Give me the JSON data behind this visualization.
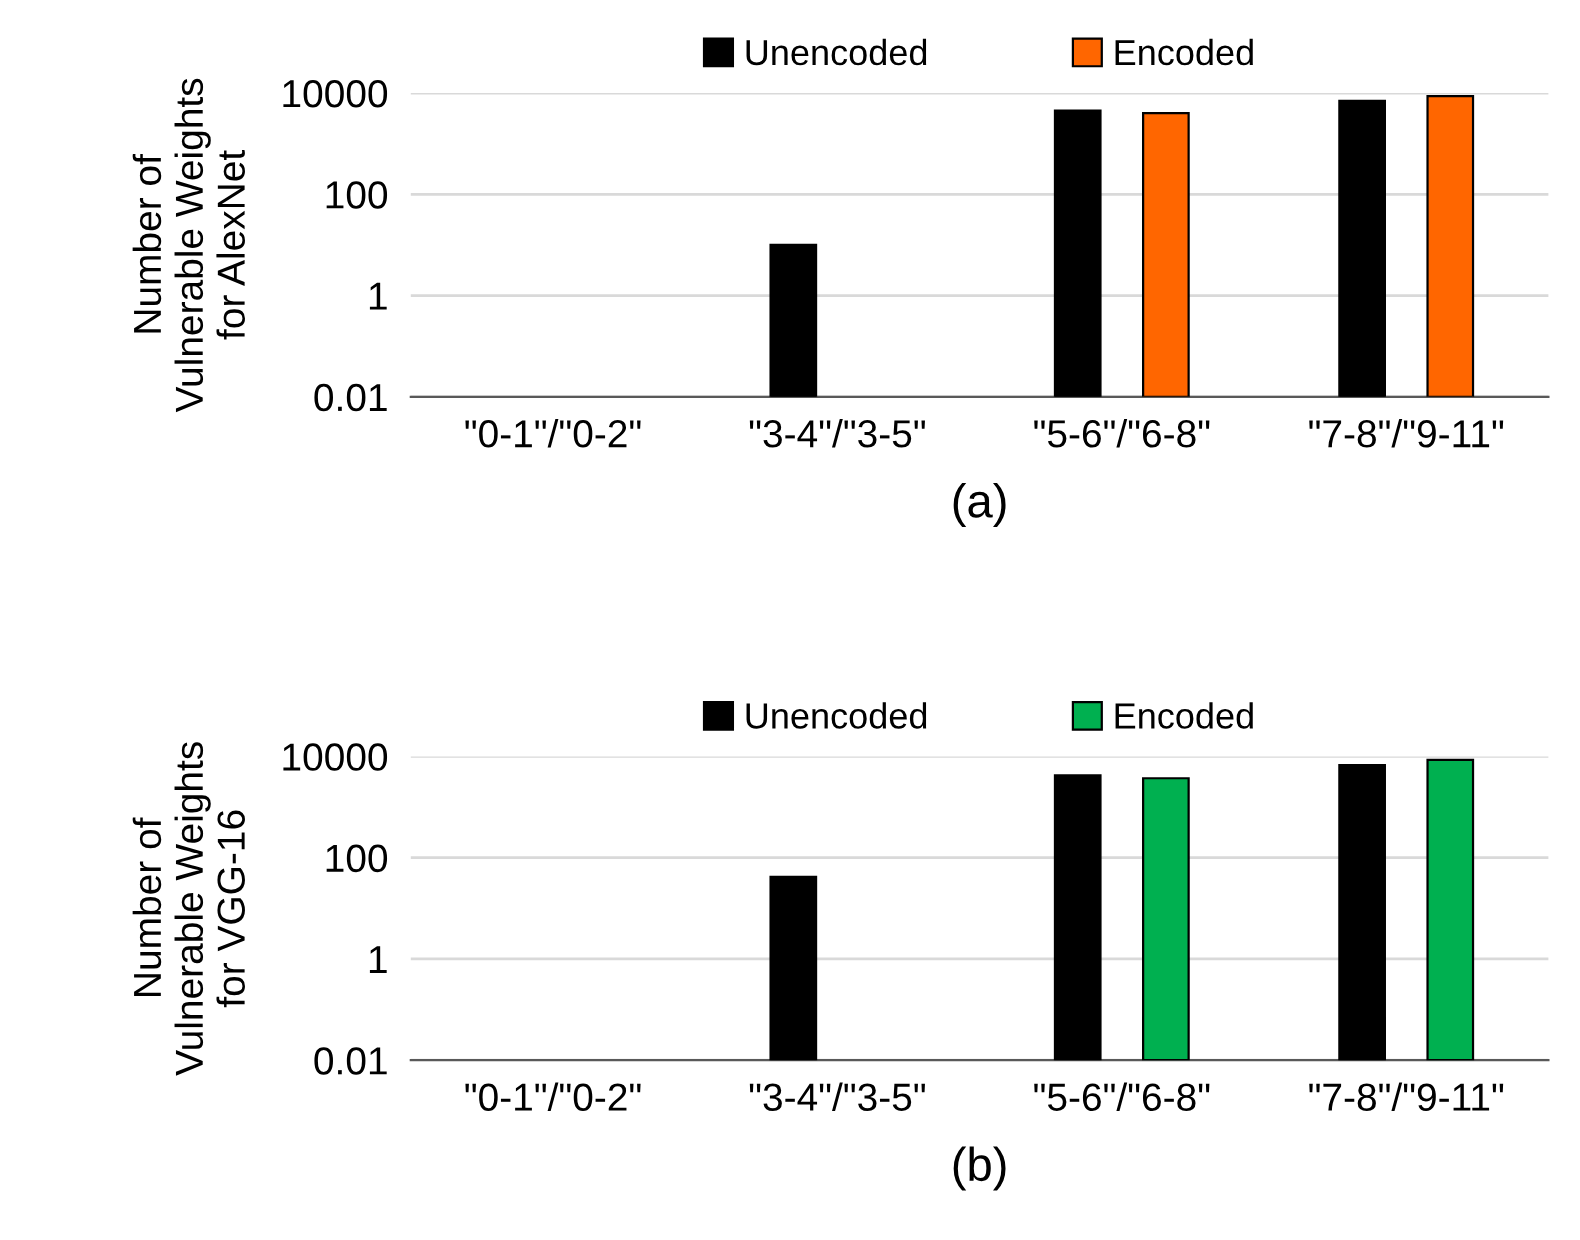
{
  "chart_data": [
    {
      "type": "bar",
      "xlabel": "(a)",
      "ylabel": "Number of\nVulnerable Weights\nfor AlexNet",
      "categories": [
        "\"0-1\"/\"0-2\"",
        "\"3-4\"/\"3-5\"",
        "\"5-6\"/\"6-8\"",
        "\"7-8\"/\"9-11\""
      ],
      "series": [
        {
          "name": "Unencoded",
          "color": "#000000",
          "values": [
            null,
            10,
            4500,
            7000
          ]
        },
        {
          "name": "Encoded",
          "color": "#ff6600",
          "values": [
            null,
            null,
            4000,
            8700
          ]
        }
      ],
      "log": true,
      "ylim": [
        0.01,
        10000
      ],
      "yticks": [
        0.01,
        1,
        100,
        10000
      ],
      "grid": "y",
      "legend": "top"
    },
    {
      "type": "bar",
      "xlabel": "(b)",
      "ylabel": "Number of\nVulnerable Weights\nfor VGG-16",
      "categories": [
        "\"0-1\"/\"0-2\"",
        "\"3-4\"/\"3-5\"",
        "\"5-6\"/\"6-8\"",
        "\"7-8\"/\"9-11\""
      ],
      "series": [
        {
          "name": "Unencoded",
          "color": "#000000",
          "values": [
            null,
            42,
            4200,
            6700
          ]
        },
        {
          "name": "Encoded",
          "color": "#00b050",
          "values": [
            null,
            null,
            3700,
            8500
          ]
        }
      ],
      "log": true,
      "ylim": [
        0.01,
        10000
      ],
      "yticks": [
        0.01,
        1,
        100,
        10000
      ],
      "grid": "y",
      "legend": "top"
    }
  ]
}
